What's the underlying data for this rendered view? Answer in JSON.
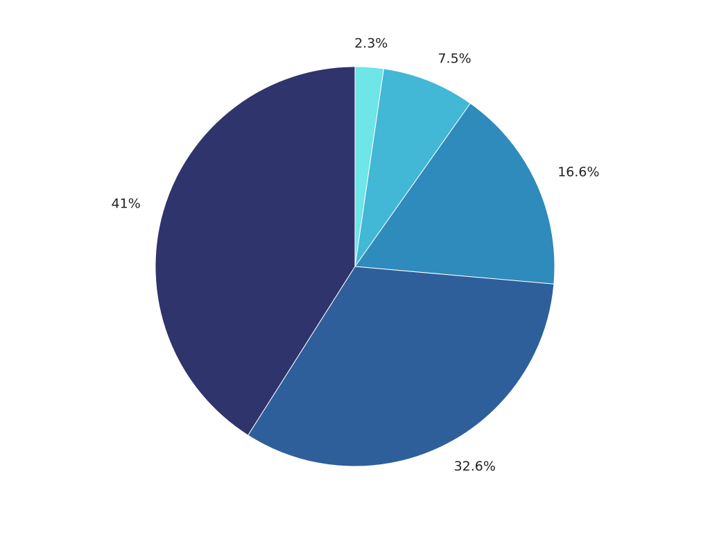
{
  "chart_data": {
    "type": "pie",
    "title": "",
    "slices": [
      {
        "value": 2.3,
        "label": "2.3%",
        "color": "#6ee5e6"
      },
      {
        "value": 7.5,
        "label": "7.5%",
        "color": "#42b7d6"
      },
      {
        "value": 16.6,
        "label": "16.6%",
        "color": "#2e8bbb"
      },
      {
        "value": 32.6,
        "label": "32.6%",
        "color": "#2e5f9a"
      },
      {
        "value": 41,
        "label": "41%",
        "color": "#30346c"
      }
    ],
    "start_angle": "12 o'clock",
    "direction": "clockwise",
    "legend": "none"
  }
}
